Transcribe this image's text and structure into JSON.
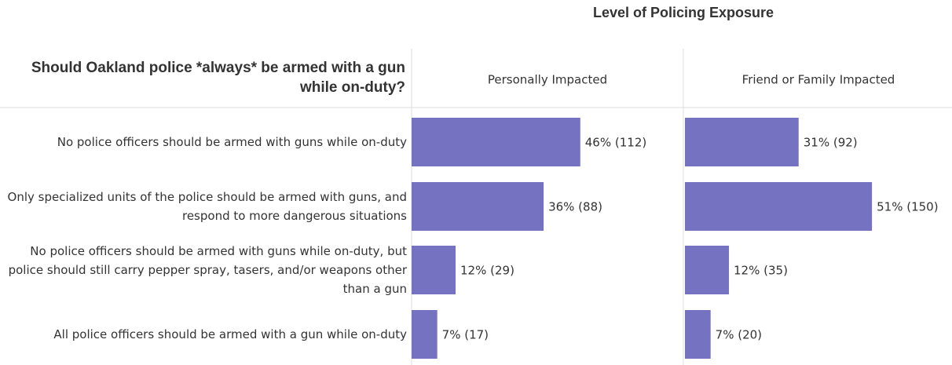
{
  "chart_data": {
    "type": "bar",
    "title": "Level of Policing Exposure",
    "row_header": "Should Oakland police *always* be armed with a gun while on-duty?",
    "categories": [
      "No police officers should be armed with guns while on-duty",
      "Only specialized units of the police should be armed with guns, and respond to more dangerous situations",
      "No police officers should be armed with guns while on-duty, but police should still carry pepper spray, tasers, and/or weapons other than a gun",
      "All police officers should be armed with a gun while on-duty"
    ],
    "xlim": [
      0,
      74
    ],
    "series": [
      {
        "name": "Personally Impacted",
        "color": "#7573c1",
        "values": [
          46,
          36,
          12,
          7
        ],
        "value_labels": [
          "46% (112)",
          "36% (88)",
          "12% (29)",
          "7% (17)"
        ]
      },
      {
        "name": "Friend or Family Impacted",
        "color": "#7573c1",
        "values": [
          31,
          51,
          12,
          7
        ],
        "value_labels": [
          "31% (92)",
          "51% (150)",
          "12% (35)",
          "7% (20)"
        ]
      }
    ]
  }
}
